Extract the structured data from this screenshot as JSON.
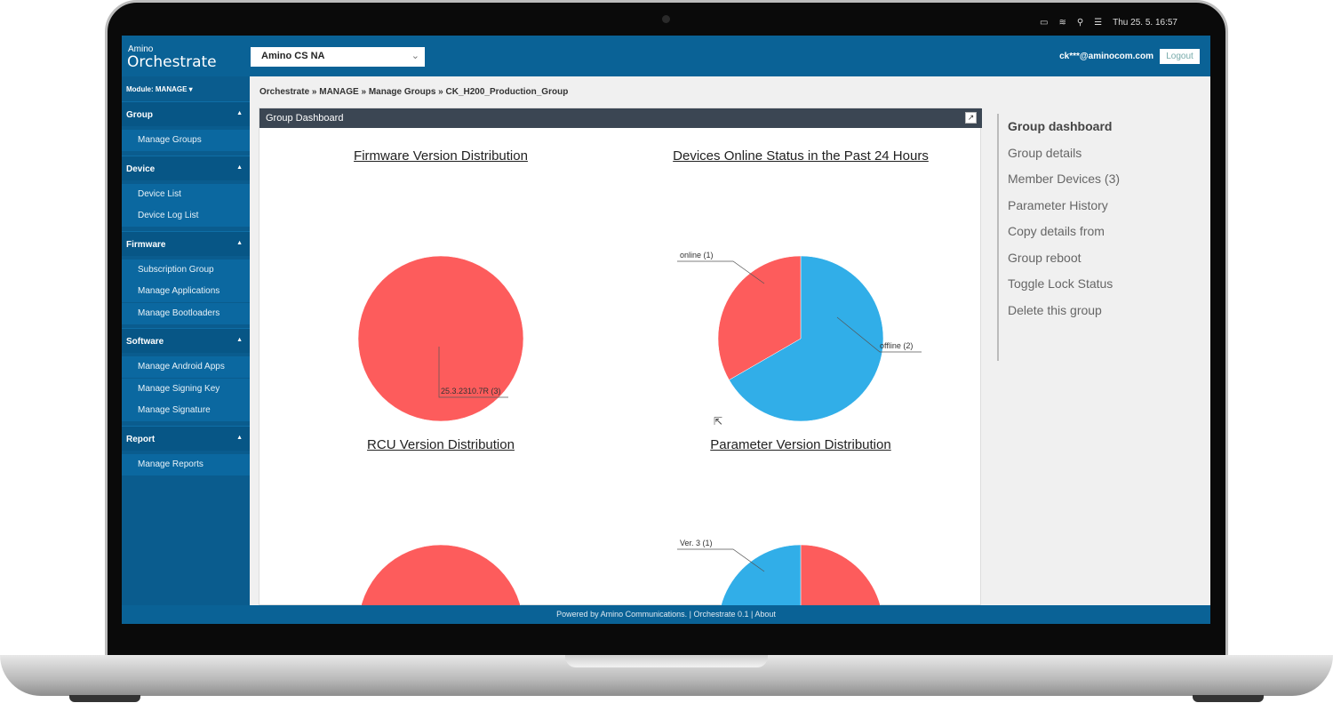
{
  "system_bar": {
    "icons": [
      "battery-icon",
      "wifi-icon",
      "search-icon",
      "control-center-icon"
    ],
    "datetime": "Thu 25. 5.  16:57"
  },
  "header": {
    "logo_small": "Amino",
    "logo_big": "Orchestrate",
    "org_select": "Amino CS NA",
    "user": "ck***@aminocom.com",
    "logout": "Logout"
  },
  "sidebar": {
    "module": "Module: MANAGE",
    "sections": [
      {
        "label": "Group",
        "items": [
          "Manage Groups"
        ]
      },
      {
        "label": "Device",
        "items": [
          "Device List",
          "Device Log List"
        ]
      },
      {
        "label": "Firmware",
        "items": [
          "Subscription Group",
          "Manage Applications",
          "Manage Bootloaders"
        ]
      },
      {
        "label": "Software",
        "items": [
          "Manage Android Apps",
          "Manage Signing Key",
          "Manage Signature"
        ]
      },
      {
        "label": "Report",
        "items": [
          "Manage Reports"
        ]
      }
    ]
  },
  "breadcrumb": "Orchestrate » MANAGE » Manage Groups » CK_H200_Production_Group",
  "panel": {
    "title": "Group Dashboard"
  },
  "colors": {
    "red": "#fd5c5c",
    "blue": "#31aee8",
    "header": "#0a6296"
  },
  "chart_data": [
    {
      "type": "pie",
      "title": "Firmware Version Distribution",
      "slices": [
        {
          "label": "25.3.2310.7R (3)",
          "value": 3,
          "color": "#fd5c5c"
        }
      ]
    },
    {
      "type": "pie",
      "title": "Devices Online Status in the Past 24 Hours",
      "slices": [
        {
          "label": "offline (2)",
          "value": 2,
          "color": "#31aee8"
        },
        {
          "label": "online (1)",
          "value": 1,
          "color": "#fd5c5c"
        }
      ]
    },
    {
      "type": "pie",
      "title": "RCU Version Distribution",
      "slices": [
        {
          "label": "",
          "value": 1,
          "color": "#fd5c5c"
        }
      ]
    },
    {
      "type": "pie",
      "title": "Parameter Version Distribution",
      "slices": [
        {
          "label": "",
          "value": 2,
          "color": "#fd5c5c"
        },
        {
          "label": "Ver. 3 (1)",
          "value": 1,
          "color": "#31aee8"
        }
      ]
    }
  ],
  "right_menu": [
    "Group dashboard",
    "Group details",
    "Member Devices (3)",
    "Parameter History",
    "Copy details from",
    "Group reboot",
    "Toggle Lock Status",
    "Delete this group"
  ],
  "footer": "Powered by Amino Communications. | Orchestrate 0.1 | About"
}
